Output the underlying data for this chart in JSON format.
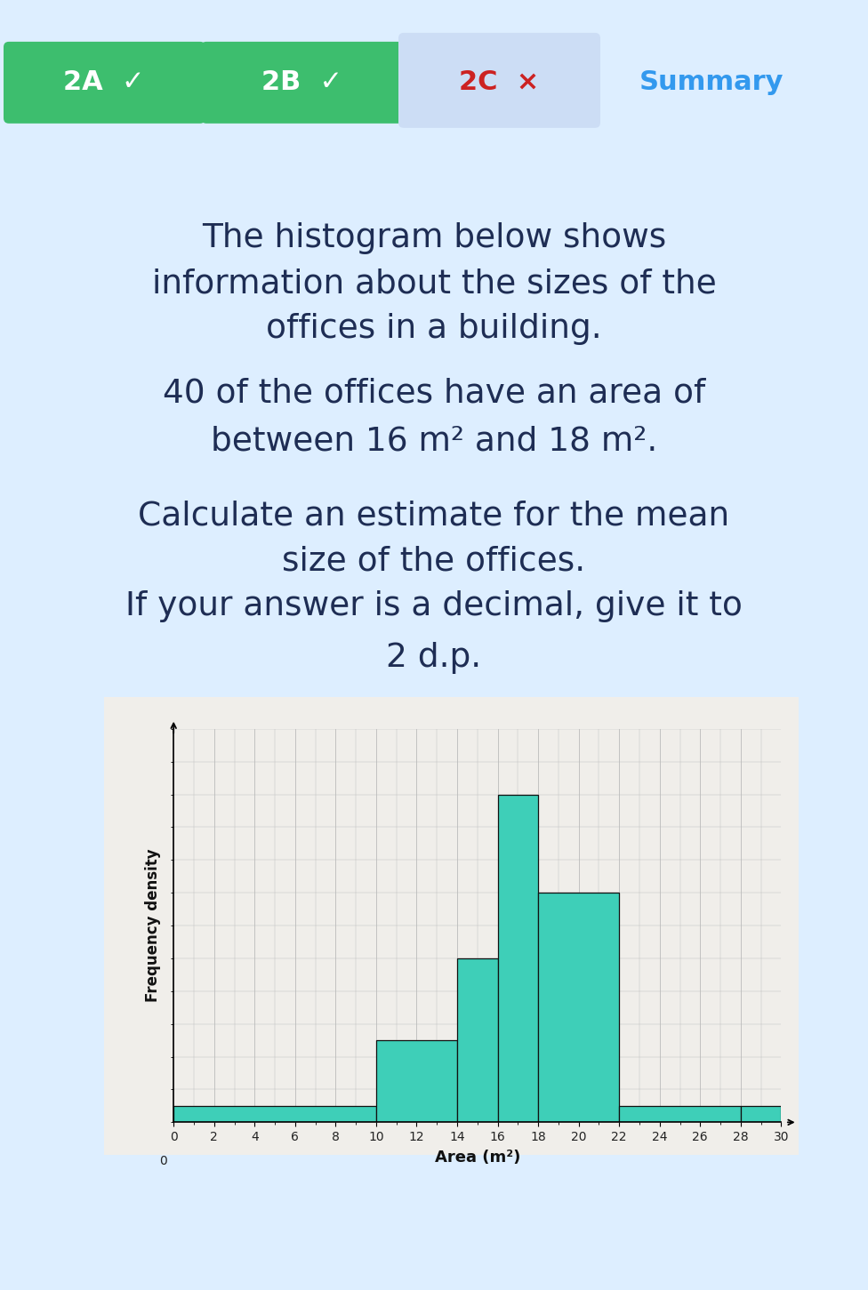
{
  "page_bg": "#ddeeff",
  "top_bar_color": "#5aabee",
  "tab_2a_color": "#3dbe6e",
  "tab_2b_color": "#3dbe6e",
  "tab_2c_bg": "#ccddf5",
  "tab_2c_text_color": "#cc2222",
  "summary_text_color": "#3399ee",
  "main_text_color": "#1e2d54",
  "dark_bar_color": "#1e3060",
  "histogram_bg": "#f0eeea",
  "bar_color": "#3ecfb8",
  "bar_edge_color": "#111111",
  "grid_color": "#bbbbbb",
  "text_line1": "The histogram below shows",
  "text_line2": "information about the sizes of the",
  "text_line3": "offices in a building.",
  "text_line4": "40 of the offices have an area of",
  "text_line5": "between 16 m² and 18 m².",
  "text_line6": "Calculate an estimate for the mean",
  "text_line7": "size of the offices.",
  "text_line8": "If your answer is a decimal, give it to",
  "text_line9": "2 d.p.",
  "ylabel": "Frequency density",
  "xlabel": "Area (m²)",
  "bins": [
    0,
    10,
    14,
    16,
    18,
    22,
    28,
    30
  ],
  "freq_density": [
    0.5,
    2.5,
    5.0,
    10.0,
    7.0,
    0.5,
    0.5
  ],
  "xlim": [
    0,
    30
  ],
  "ylim": [
    0,
    12
  ],
  "xticks": [
    0,
    2,
    4,
    6,
    8,
    10,
    12,
    14,
    16,
    18,
    20,
    22,
    24,
    26,
    28,
    30
  ]
}
